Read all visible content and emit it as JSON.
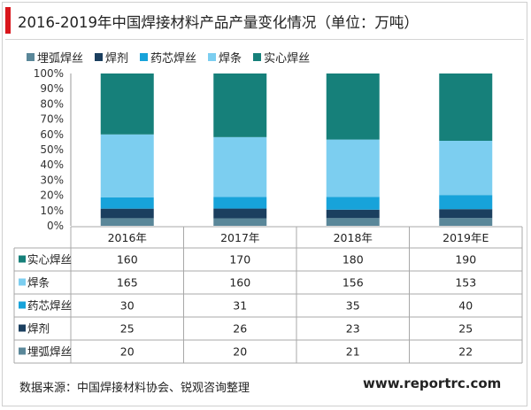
{
  "title": "2016-2019年中国焊接材料产品产量变化情况（单位：万吨）",
  "source": "数据来源：中国焊接材料协会、锐观咨询整理",
  "website": "www.reportrc.com",
  "chart_data": {
    "type": "bar",
    "stacked": "percent",
    "categories": [
      "2016年",
      "2017年",
      "2018年",
      "2019年E"
    ],
    "y_ticks": [
      "0%",
      "10%",
      "20%",
      "30%",
      "40%",
      "50%",
      "60%",
      "70%",
      "80%",
      "90%",
      "100%"
    ],
    "ylim": [
      0,
      100
    ],
    "legend_position": "top",
    "series": [
      {
        "name": "埋弧焊丝",
        "color": "#5a8799",
        "values": [
          20,
          20,
          21,
          22
        ]
      },
      {
        "name": "焊剂",
        "color": "#1b3f5f",
        "values": [
          25,
          26,
          23,
          25
        ]
      },
      {
        "name": "药芯焊丝",
        "color": "#17a3da",
        "values": [
          30,
          31,
          35,
          40
        ]
      },
      {
        "name": "焊条",
        "color": "#7ccef0",
        "values": [
          165,
          160,
          156,
          153
        ]
      },
      {
        "name": "实心焊丝",
        "color": "#16807a",
        "values": [
          160,
          170,
          180,
          190
        ]
      }
    ],
    "table_row_order": [
      "实心焊丝",
      "焊条",
      "药芯焊丝",
      "焊剂",
      "埋弧焊丝"
    ]
  }
}
